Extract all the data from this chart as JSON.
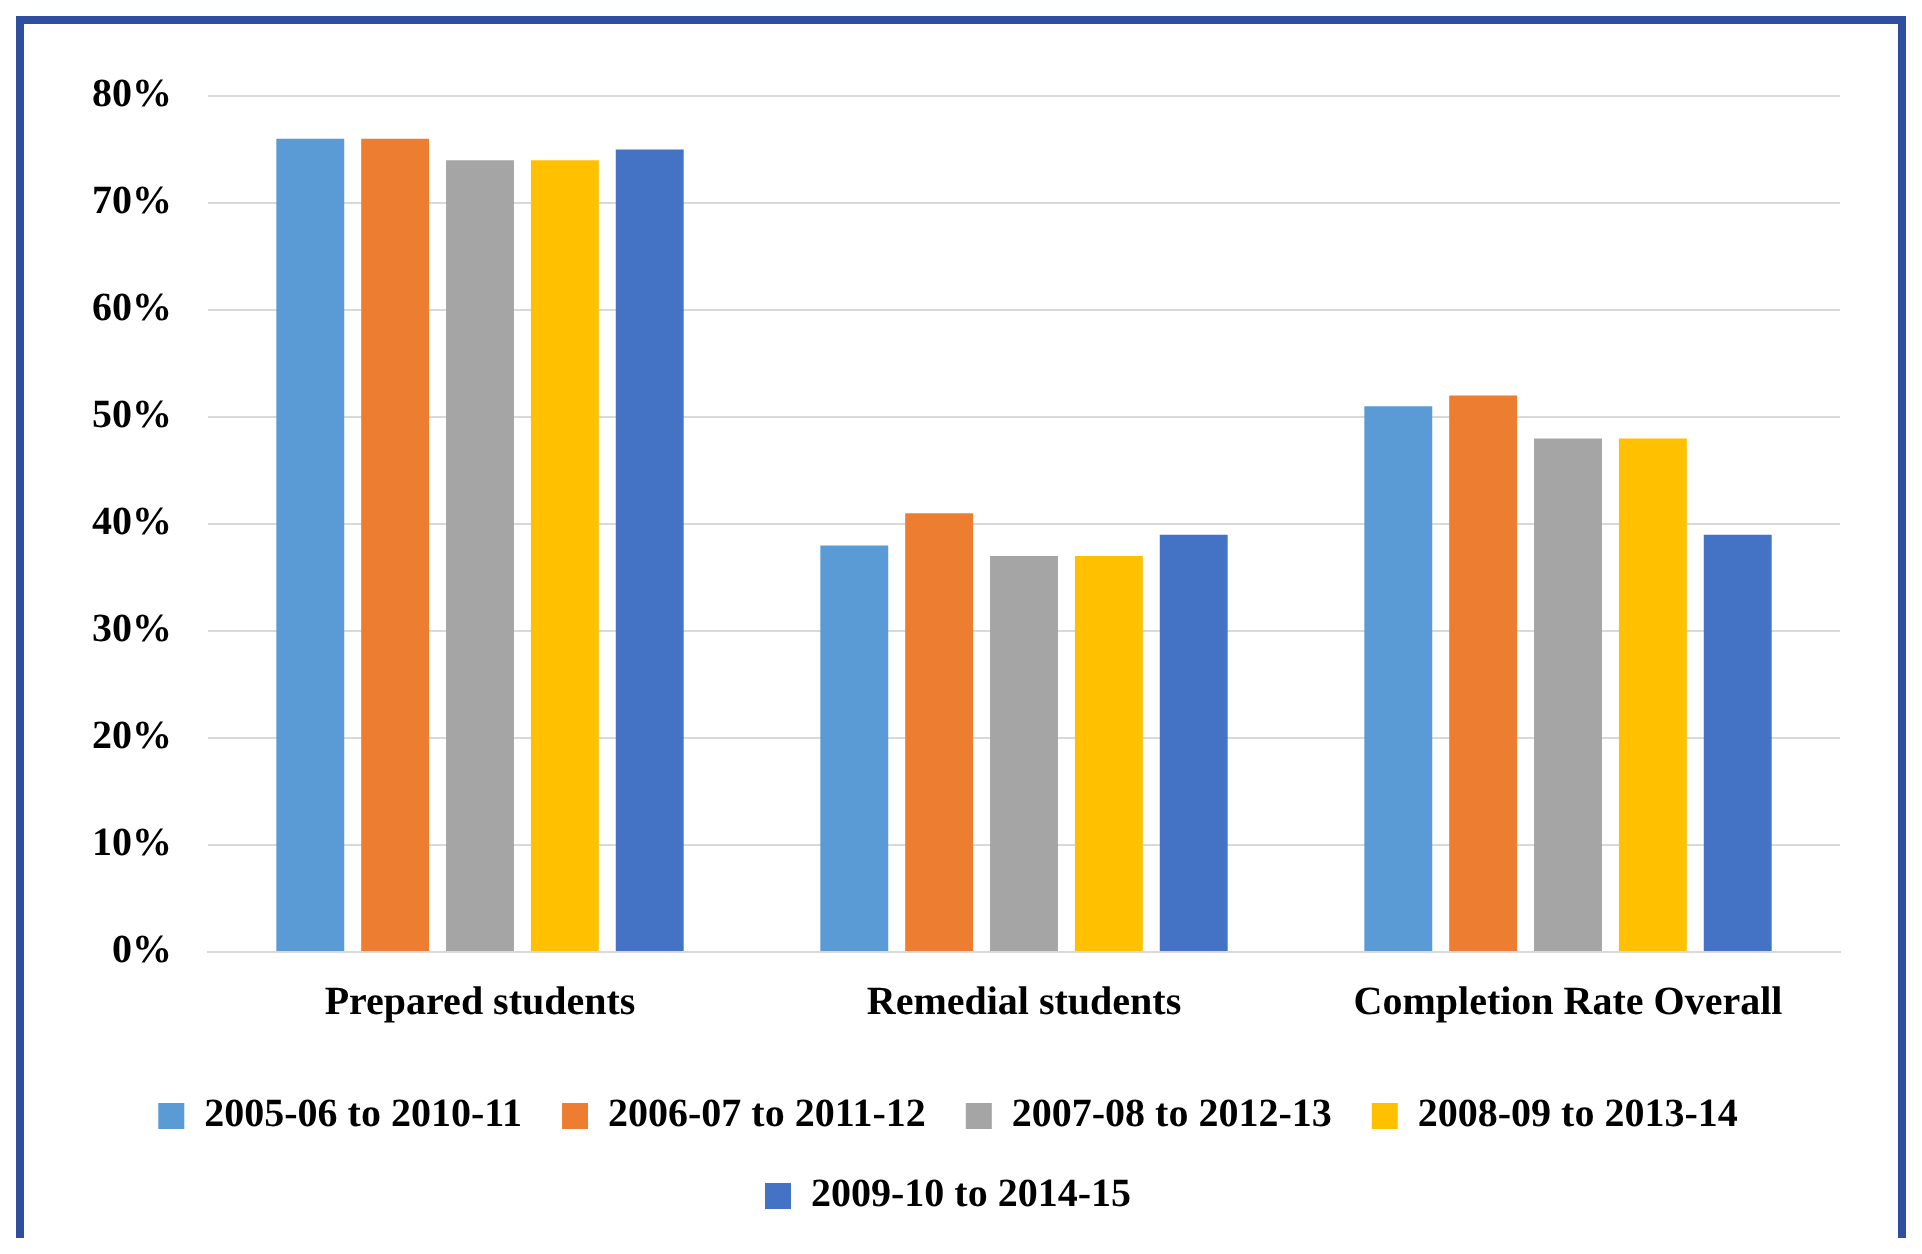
{
  "chart_data": {
    "type": "bar",
    "categories": [
      "Prepared students",
      "Remedial students",
      "Completion Rate Overall"
    ],
    "series": [
      {
        "name": "2005-06 to 2010-11",
        "color": "#5b9bd5",
        "values": [
          76,
          38,
          51
        ]
      },
      {
        "name": "2006-07 to 2011-12",
        "color": "#ed7d31",
        "values": [
          76,
          41,
          52
        ]
      },
      {
        "name": "2007-08 to 2012-13",
        "color": "#a5a5a5",
        "values": [
          74,
          37,
          48
        ]
      },
      {
        "name": "2008-09 to 2013-14",
        "color": "#ffc000",
        "values": [
          74,
          37,
          48
        ]
      },
      {
        "name": "2009-10 to 2014-15",
        "color": "#4472c4",
        "values": [
          75,
          39,
          39
        ]
      }
    ],
    "ylim": [
      0,
      80
    ],
    "yticks": [
      {
        "value": 0,
        "label": "0%"
      },
      {
        "value": 10,
        "label": "10%"
      },
      {
        "value": 20,
        "label": "20%"
      },
      {
        "value": 30,
        "label": "30%"
      },
      {
        "value": 40,
        "label": "40%"
      },
      {
        "value": 50,
        "label": "50%"
      },
      {
        "value": 60,
        "label": "60%"
      },
      {
        "value": 70,
        "label": "70%"
      },
      {
        "value": 80,
        "label": "80%"
      }
    ],
    "grid": "y",
    "legend": "bottom"
  }
}
